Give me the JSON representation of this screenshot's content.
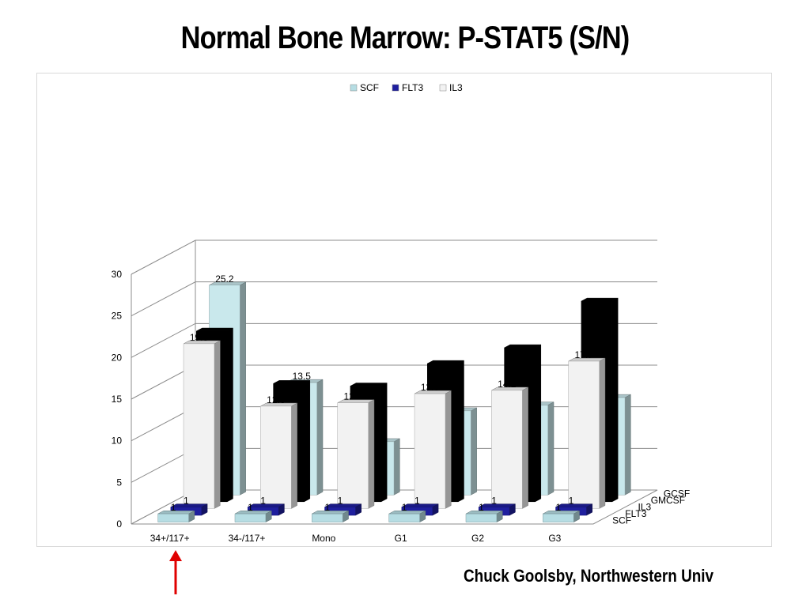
{
  "title": "Normal Bone Marrow: P-STAT5 (S/N)",
  "credit": "Chuck Goolsby, Northwestern Univ",
  "colors": {
    "scf": "#b6dde3",
    "flt3": "#1f1f9e",
    "il3": "#f2f2f2",
    "gmcsf": "#000000",
    "gcsf": "#c9e8ec",
    "arrow": "#e00000",
    "grid": "#8c8c8c"
  },
  "legend": [
    {
      "name": "SCF",
      "color": "#b6dde3"
    },
    {
      "name": "FLT3",
      "color": "#1f1f9e"
    },
    {
      "name": "IL3",
      "color": "#f2f2f2"
    }
  ],
  "chart_data": {
    "type": "bar",
    "title": "Normal Bone Marrow: P-STAT5 (S/N)",
    "categories": [
      "34+/117+",
      "34-/117+",
      "Mono",
      "G1",
      "G2",
      "G3"
    ],
    "series_axis_labels": [
      "SCF",
      "FLT3",
      "IL3",
      "GMCSF",
      "GCSF"
    ],
    "ylim": [
      0,
      30
    ],
    "yticks": [
      "0",
      "5",
      "10",
      "15",
      "20",
      "25",
      "30"
    ],
    "grid": true,
    "legend_position": "top",
    "series": [
      {
        "name": "SCF",
        "values": [
          1,
          1,
          1,
          1,
          1,
          1
        ],
        "labels": [
          "1",
          "1",
          "1",
          "1",
          "1",
          "1"
        ]
      },
      {
        "name": "FLT3",
        "values": [
          1,
          1,
          1,
          1,
          1,
          1
        ],
        "labels": [
          "1",
          "1",
          "1",
          "1",
          "1",
          "1"
        ]
      },
      {
        "name": "IL3",
        "values": [
          19.8,
          12.3,
          12.7,
          13.8,
          14.2,
          17.7
        ],
        "labels": [
          "19.8",
          "12.3",
          "12.7",
          "13.8",
          "14.2",
          "17.7"
        ]
      },
      {
        "name": "GMCSF",
        "values": [
          20.5,
          14.2,
          13.9,
          16.6,
          18.5,
          24.1
        ],
        "labels": [
          "",
          "",
          "",
          "",
          "",
          ""
        ]
      },
      {
        "name": "GCSF",
        "values": [
          25.2,
          13.5,
          6.4,
          10.1,
          10.8,
          11.7
        ],
        "labels": [
          "25.2",
          "13.5",
          "",
          "",
          "",
          ""
        ]
      }
    ]
  }
}
